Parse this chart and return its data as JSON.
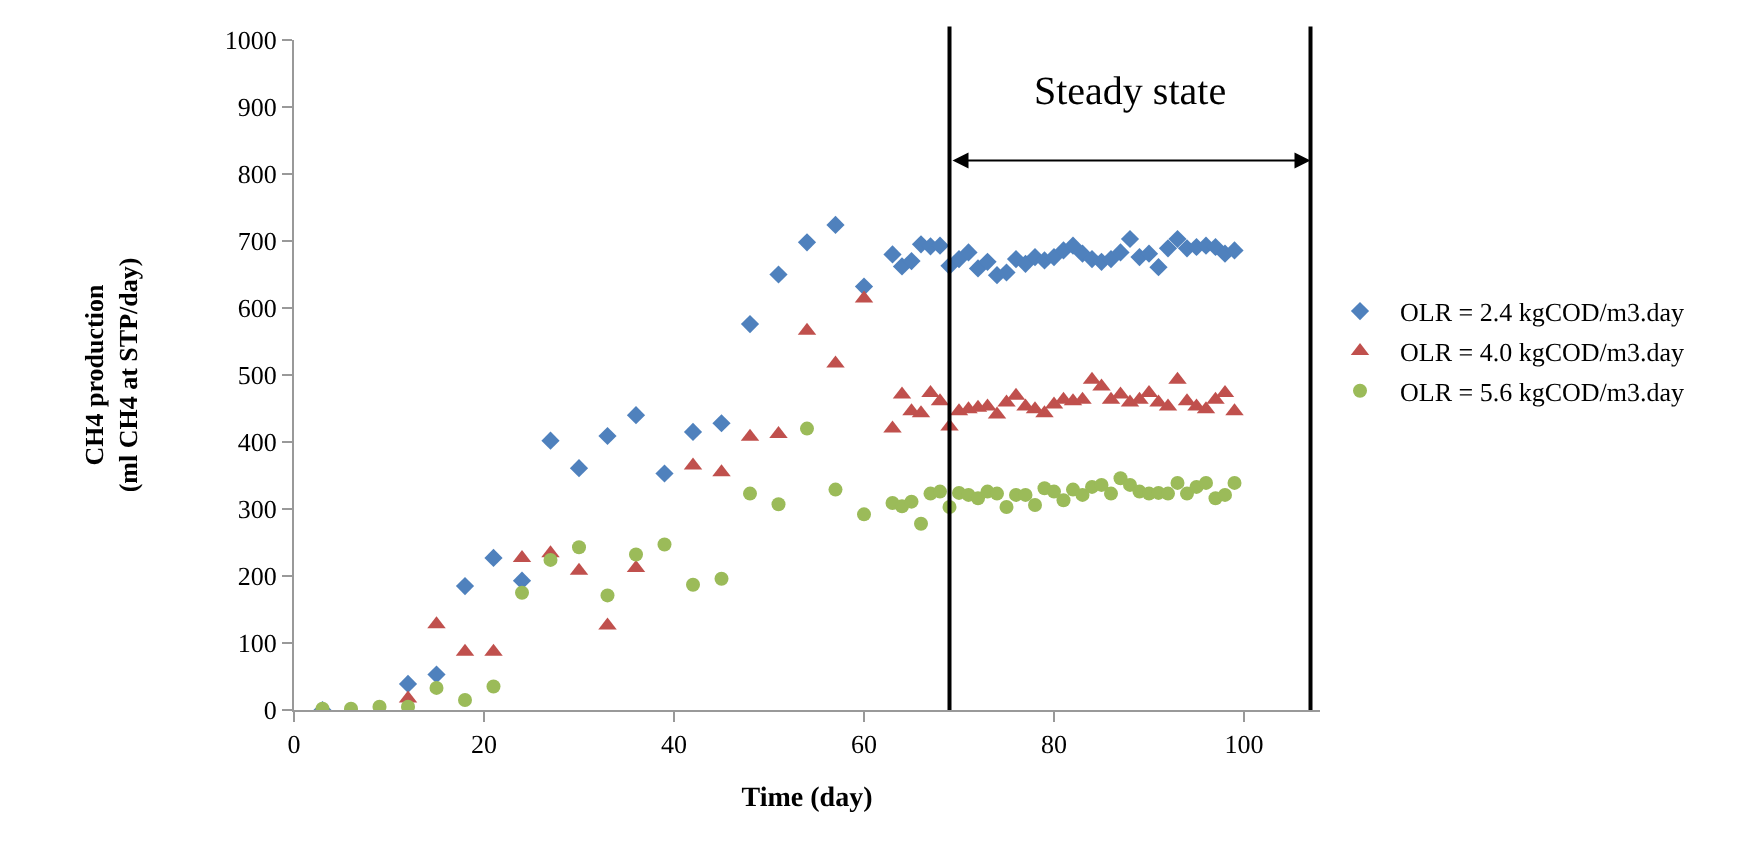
{
  "chart_data": {
    "type": "scatter",
    "xlabel": "Time (day)",
    "ylabel": "CH4 production\n(ml CH4 at STP/day)",
    "x": [
      3,
      6,
      9,
      12,
      15,
      18,
      21,
      24,
      27,
      30,
      33,
      36,
      39,
      42,
      45,
      48,
      51,
      54,
      57,
      60,
      63,
      64,
      65,
      66,
      67,
      68,
      69,
      70,
      71,
      72,
      73,
      74,
      75,
      76,
      77,
      78,
      79,
      80,
      81,
      82,
      83,
      84,
      85,
      86,
      87,
      88,
      89,
      90,
      91,
      92,
      93,
      94,
      95,
      96,
      97,
      98,
      99
    ],
    "series": [
      {
        "name": "OLR = 2.4 kgCOD/m3.day",
        "color": "#4f81bd",
        "marker": "diamond",
        "values": [
          0,
          null,
          null,
          39,
          53,
          185,
          227,
          193,
          402,
          361,
          409,
          440,
          353,
          415,
          428,
          576,
          650,
          698,
          724,
          632,
          680,
          662,
          670,
          695,
          692,
          693,
          663,
          673,
          683,
          659,
          669,
          649,
          653,
          673,
          666,
          676,
          671,
          676,
          686,
          693,
          681,
          673,
          669,
          673,
          683,
          703,
          676,
          681,
          661,
          689,
          703,
          689,
          691,
          693,
          691,
          681,
          686
        ]
      },
      {
        "name": "OLR = 4.0 kgCOD/m3.day",
        "color": "#c0504d",
        "marker": "triangle",
        "values": [
          null,
          null,
          null,
          17,
          128,
          87,
          87,
          227,
          234,
          208,
          126,
          212,
          null,
          365,
          355,
          408,
          412,
          566,
          517,
          614,
          420,
          471,
          446,
          443,
          473,
          461,
          423,
          446,
          449,
          451,
          453,
          441,
          459,
          469,
          453,
          449,
          443,
          456,
          463,
          461,
          463,
          493,
          483,
          463,
          471,
          459,
          463,
          473,
          459,
          453,
          493,
          461,
          453,
          449,
          463,
          473,
          446
        ]
      },
      {
        "name": "OLR = 5.6 kgCOD/m3.day",
        "color": "#9bbb59",
        "marker": "circle",
        "values": [
          2,
          2,
          5,
          5,
          33,
          15,
          35,
          175,
          224,
          243,
          171,
          232,
          247,
          187,
          196,
          323,
          307,
          420,
          329,
          292,
          309,
          304,
          311,
          278,
          323,
          326,
          303,
          324,
          321,
          316,
          326,
          323,
          303,
          321,
          321,
          306,
          331,
          326,
          313,
          329,
          321,
          333,
          336,
          323,
          346,
          336,
          326,
          323,
          324,
          323,
          339,
          323,
          333,
          339,
          316,
          321,
          339
        ]
      }
    ],
    "xlim": [
      0,
      108
    ],
    "xticks": [
      0,
      20,
      40,
      60,
      80,
      100
    ],
    "ylim": [
      0,
      1000
    ],
    "yticks": [
      0,
      100,
      200,
      300,
      400,
      500,
      600,
      700,
      800,
      900,
      1000
    ],
    "ref_lines": [
      {
        "axis": "x",
        "value": 69,
        "color": "#000000"
      },
      {
        "axis": "x",
        "value": 107,
        "color": "#000000"
      }
    ],
    "annotations": [
      "Steady state"
    ],
    "grid": false,
    "legend": "right"
  }
}
